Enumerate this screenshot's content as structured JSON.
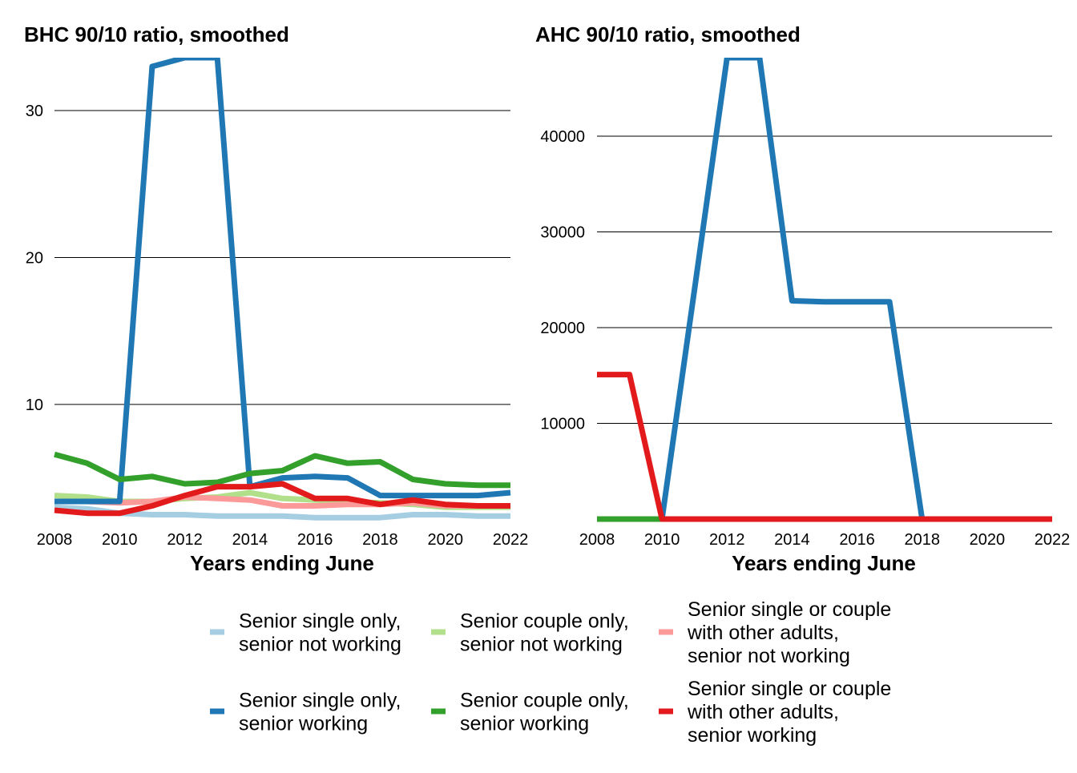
{
  "chart_data": [
    {
      "type": "line",
      "title": "BHC 90/10 ratio, smoothed",
      "xlabel": "Years ending June",
      "ylabel": "",
      "x": [
        2008,
        2009,
        2010,
        2011,
        2012,
        2013,
        2014,
        2015,
        2016,
        2017,
        2018,
        2019,
        2020,
        2021,
        2022
      ],
      "xlim": [
        2008,
        2022
      ],
      "ylim": [
        2.2,
        33.6
      ],
      "xticks": [
        2008,
        2010,
        2012,
        2014,
        2016,
        2018,
        2020,
        2022
      ],
      "yticks": [
        10,
        20,
        30
      ],
      "grid": "horizontal",
      "series": [
        {
          "name": "Senior single only, senior not working",
          "color": "#a6cee3",
          "values": [
            3.0,
            2.9,
            2.6,
            2.5,
            2.5,
            2.4,
            2.4,
            2.4,
            2.3,
            2.3,
            2.3,
            2.5,
            2.5,
            2.4,
            2.4
          ]
        },
        {
          "name": "Senior couple only, senior not working",
          "color": "#b2df8a",
          "values": [
            3.8,
            3.7,
            3.4,
            3.4,
            3.6,
            3.7,
            4.0,
            3.6,
            3.5,
            3.4,
            3.3,
            3.2,
            3.0,
            3.0,
            3.0
          ]
        },
        {
          "name": "Senior single or couple with other adults, senior not working",
          "color": "#fb9a99",
          "values": [
            3.4,
            3.4,
            3.3,
            3.4,
            3.7,
            3.6,
            3.5,
            3.1,
            3.1,
            3.2,
            3.2,
            3.3,
            3.1,
            3.1,
            3.1
          ]
        },
        {
          "name": "Senior single only, senior working",
          "color": "#1f78b4",
          "values": [
            3.4,
            3.4,
            3.4,
            33.0,
            33.6,
            33.6,
            4.4,
            5.0,
            5.1,
            5.0,
            3.8,
            3.8,
            3.8,
            3.8,
            4.0
          ]
        },
        {
          "name": "Senior couple only, senior working",
          "color": "#33a02c",
          "values": [
            6.6,
            6.0,
            4.9,
            5.1,
            4.6,
            4.7,
            5.3,
            5.5,
            6.5,
            6.0,
            6.1,
            4.9,
            4.6,
            4.5,
            4.5
          ]
        },
        {
          "name": "Senior single or couple with other adults, senior working",
          "color": "#e31a1c",
          "values": [
            2.8,
            2.6,
            2.6,
            3.1,
            3.8,
            4.4,
            4.4,
            4.6,
            3.6,
            3.6,
            3.2,
            3.5,
            3.2,
            3.1,
            3.1
          ]
        }
      ]
    },
    {
      "type": "line",
      "title": "AHC 90/10 ratio, smoothed",
      "xlabel": "Years ending June",
      "ylabel": "",
      "x": [
        2008,
        2009,
        2010,
        2011,
        2012,
        2013,
        2014,
        2015,
        2016,
        2017,
        2018,
        2019,
        2020,
        2021,
        2022
      ],
      "xlim": [
        2008,
        2022
      ],
      "ylim": [
        0,
        48200
      ],
      "xticks": [
        2008,
        2010,
        2012,
        2014,
        2016,
        2018,
        2020,
        2022
      ],
      "yticks": [
        10000,
        20000,
        30000,
        40000
      ],
      "grid": "horizontal",
      "series": [
        {
          "name": "Senior single only, senior not working",
          "color": "#a6cee3",
          "values": [
            0,
            0,
            0,
            0,
            0,
            0,
            0,
            0,
            0,
            0,
            0,
            0,
            0,
            0,
            0
          ]
        },
        {
          "name": "Senior couple only, senior not working",
          "color": "#b2df8a",
          "values": [
            0,
            0,
            0,
            0,
            0,
            0,
            0,
            0,
            0,
            0,
            0,
            0,
            0,
            0,
            0
          ]
        },
        {
          "name": "Senior single or couple with other adults, senior not working",
          "color": "#fb9a99",
          "values": [
            0,
            0,
            0,
            0,
            0,
            0,
            0,
            0,
            0,
            0,
            0,
            0,
            0,
            0,
            0
          ]
        },
        {
          "name": "Senior couple only, senior working",
          "color": "#33a02c",
          "values": [
            0,
            0,
            0,
            0,
            0,
            0,
            0,
            0,
            0,
            0,
            0,
            0,
            0,
            0,
            0
          ]
        },
        {
          "name": "Senior single only, senior working",
          "color": "#1f78b4",
          "values": [
            null,
            null,
            0,
            24000,
            48200,
            48200,
            22800,
            22700,
            22700,
            22700,
            0,
            0,
            0,
            0,
            0
          ]
        },
        {
          "name": "Senior single or couple with other adults, senior working",
          "color": "#e31a1c",
          "values": [
            15100,
            15100,
            0,
            0,
            0,
            0,
            0,
            0,
            0,
            0,
            0,
            0,
            0,
            0,
            0
          ]
        }
      ]
    }
  ],
  "legend": {
    "placement": "bottom",
    "items": [
      {
        "lines": [
          "Senior single only,",
          "senior not working"
        ],
        "color": "#a6cee3"
      },
      {
        "lines": [
          "Senior couple only,",
          "senior not working"
        ],
        "color": "#b2df8a"
      },
      {
        "lines": [
          "Senior single or couple",
          "with other adults,",
          "senior not working"
        ],
        "color": "#fb9a99"
      },
      {
        "lines": [
          "Senior single only,",
          "senior working"
        ],
        "color": "#1f78b4"
      },
      {
        "lines": [
          "Senior couple only,",
          "senior working"
        ],
        "color": "#33a02c"
      },
      {
        "lines": [
          "Senior single or couple",
          "with other adults,",
          "senior working"
        ],
        "color": "#e31a1c"
      }
    ]
  }
}
